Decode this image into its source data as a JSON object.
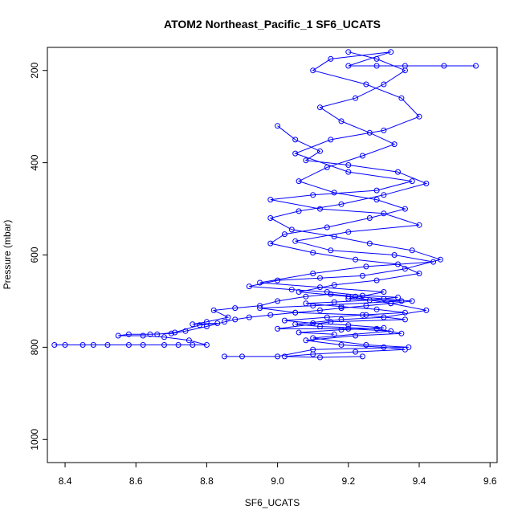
{
  "chart_data": {
    "type": "scatter",
    "title": "ATOM2 Northeast_Pacific_1 SF6_UCATS",
    "xlabel": "SF6_UCATS",
    "ylabel": "Pressure (mbar)",
    "xlim": [
      8.35,
      9.62
    ],
    "ylim": [
      1050,
      150
    ],
    "y_reversed": true,
    "xticks": [
      8.4,
      8.6,
      8.8,
      9.0,
      9.2,
      9.4,
      9.6
    ],
    "yticks": [
      200,
      400,
      600,
      800,
      1000
    ],
    "grid": false,
    "legend": "none",
    "color": "#0000ff",
    "marker": "open-circle",
    "connected": true,
    "approximate": true,
    "series": [
      {
        "values": [
          [
            9.56,
            190
          ],
          [
            9.47,
            190
          ],
          [
            9.36,
            190
          ],
          [
            9.28,
            190
          ],
          [
            9.2,
            190
          ],
          [
            9.32,
            160
          ],
          [
            9.15,
            175
          ],
          [
            9.1,
            200
          ],
          [
            9.25,
            230
          ],
          [
            9.35,
            260
          ],
          [
            9.4,
            300
          ],
          [
            9.3,
            330
          ],
          [
            9.15,
            350
          ],
          [
            9.05,
            380
          ],
          [
            9.2,
            420
          ],
          [
            9.38,
            440
          ],
          [
            9.28,
            460
          ],
          [
            9.1,
            470
          ],
          [
            8.98,
            480
          ],
          [
            9.12,
            500
          ],
          [
            9.3,
            510
          ],
          [
            9.4,
            535
          ],
          [
            9.2,
            550
          ],
          [
            9.05,
            570
          ],
          [
            9.15,
            590
          ],
          [
            9.33,
            600
          ],
          [
            9.44,
            615
          ],
          [
            9.25,
            625
          ],
          [
            9.1,
            640
          ],
          [
            8.95,
            660
          ],
          [
            9.12,
            670
          ],
          [
            9.3,
            680
          ],
          [
            9.2,
            695
          ],
          [
            9.35,
            700
          ],
          [
            9.1,
            710
          ],
          [
            8.95,
            715
          ],
          [
            9.05,
            725
          ],
          [
            9.25,
            730
          ],
          [
            9.36,
            740
          ],
          [
            9.15,
            745
          ],
          [
            9.0,
            760
          ],
          [
            9.2,
            760
          ],
          [
            9.32,
            765
          ],
          [
            9.1,
            780
          ],
          [
            9.25,
            795
          ],
          [
            9.37,
            800
          ],
          [
            9.1,
            805
          ],
          [
            9.0,
            820
          ],
          [
            8.9,
            820
          ],
          [
            8.85,
            820
          ]
        ]
      },
      {
        "values": [
          [
            8.37,
            795
          ],
          [
            8.4,
            795
          ],
          [
            8.45,
            795
          ],
          [
            8.48,
            795
          ],
          [
            8.52,
            795
          ],
          [
            8.58,
            795
          ],
          [
            8.62,
            795
          ],
          [
            8.68,
            795
          ],
          [
            8.72,
            795
          ],
          [
            8.76,
            795
          ],
          [
            8.8,
            795
          ],
          [
            8.75,
            785
          ],
          [
            8.68,
            778
          ],
          [
            8.62,
            775
          ],
          [
            8.55,
            775
          ],
          [
            8.58,
            772
          ],
          [
            8.64,
            772
          ],
          [
            8.7,
            770
          ],
          [
            8.74,
            765
          ],
          [
            8.8,
            755
          ],
          [
            8.85,
            745
          ],
          [
            8.88,
            740
          ],
          [
            8.92,
            735
          ],
          [
            8.98,
            730
          ],
          [
            9.05,
            725
          ],
          [
            9.12,
            720
          ],
          [
            9.18,
            715
          ],
          [
            9.25,
            710
          ],
          [
            9.32,
            705
          ],
          [
            9.38,
            700
          ],
          [
            9.3,
            695
          ],
          [
            9.22,
            690
          ],
          [
            9.15,
            685
          ],
          [
            9.08,
            690
          ],
          [
            9.0,
            700
          ],
          [
            8.95,
            710
          ],
          [
            8.88,
            715
          ],
          [
            8.82,
            720
          ],
          [
            8.86,
            735
          ],
          [
            8.8,
            745
          ],
          [
            8.76,
            750
          ],
          [
            8.83,
            748
          ],
          [
            8.78,
            752
          ],
          [
            8.71,
            768
          ],
          [
            8.66,
            772
          ]
        ]
      },
      {
        "values": [
          [
            9.2,
            160
          ],
          [
            9.28,
            175
          ],
          [
            9.36,
            200
          ],
          [
            9.3,
            230
          ],
          [
            9.22,
            260
          ],
          [
            9.12,
            280
          ],
          [
            9.18,
            310
          ],
          [
            9.26,
            335
          ],
          [
            9.33,
            360
          ],
          [
            9.24,
            385
          ],
          [
            9.14,
            410
          ],
          [
            9.06,
            440
          ],
          [
            9.16,
            465
          ],
          [
            9.28,
            480
          ],
          [
            9.36,
            500
          ],
          [
            9.26,
            520
          ],
          [
            9.14,
            540
          ],
          [
            9.02,
            555
          ],
          [
            8.98,
            575
          ],
          [
            9.1,
            595
          ],
          [
            9.22,
            610
          ],
          [
            9.34,
            620
          ],
          [
            9.4,
            640
          ],
          [
            9.28,
            655
          ],
          [
            9.16,
            665
          ],
          [
            9.06,
            680
          ],
          [
            9.2,
            690
          ],
          [
            9.32,
            705
          ],
          [
            9.42,
            720
          ],
          [
            9.3,
            735
          ],
          [
            9.18,
            740
          ],
          [
            9.05,
            750
          ],
          [
            9.12,
            755
          ],
          [
            9.28,
            760
          ],
          [
            9.35,
            770
          ],
          [
            9.22,
            775
          ],
          [
            9.08,
            785
          ],
          [
            9.18,
            795
          ],
          [
            9.3,
            800
          ],
          [
            9.36,
            805
          ],
          [
            9.22,
            810
          ],
          [
            9.1,
            815
          ],
          [
            9.02,
            820
          ],
          [
            9.12,
            822
          ],
          [
            9.24,
            820
          ]
        ]
      },
      {
        "values": [
          [
            9.0,
            320
          ],
          [
            9.05,
            350
          ],
          [
            9.12,
            375
          ],
          [
            9.08,
            395
          ],
          [
            9.2,
            405
          ],
          [
            9.34,
            420
          ],
          [
            9.42,
            445
          ],
          [
            9.3,
            470
          ],
          [
            9.18,
            490
          ],
          [
            9.06,
            505
          ],
          [
            8.98,
            520
          ],
          [
            9.04,
            545
          ],
          [
            9.16,
            560
          ],
          [
            9.26,
            575
          ],
          [
            9.38,
            590
          ],
          [
            9.46,
            610
          ],
          [
            9.36,
            630
          ],
          [
            9.24,
            645
          ],
          [
            9.12,
            650
          ],
          [
            9.0,
            655
          ],
          [
            8.92,
            668
          ],
          [
            9.04,
            675
          ],
          [
            9.14,
            680
          ],
          [
            9.24,
            688
          ],
          [
            9.34,
            692
          ],
          [
            9.26,
            698
          ],
          [
            9.16,
            702
          ],
          [
            9.08,
            705
          ],
          [
            9.18,
            712
          ],
          [
            9.28,
            718
          ],
          [
            9.36,
            725
          ],
          [
            9.24,
            730
          ],
          [
            9.14,
            735
          ],
          [
            9.02,
            742
          ],
          [
            9.1,
            748
          ],
          [
            9.2,
            752
          ],
          [
            9.3,
            758
          ],
          [
            9.18,
            762
          ],
          [
            9.06,
            768
          ],
          [
            9.16,
            772
          ]
        ]
      }
    ]
  }
}
